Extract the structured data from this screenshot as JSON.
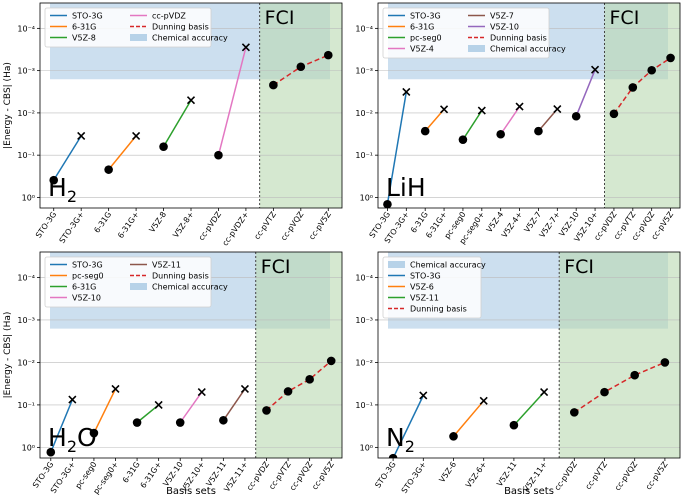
{
  "figure": {
    "ylabel": "|Energy - CBS| (Ha)",
    "xlabel": "Basis sets",
    "fci_label": "FCI",
    "colors": {
      "chemical_accuracy": "#b7d2e8",
      "fci_region": "#b9d9b0",
      "fci_text": "#2ca02c",
      "dunning": "#d62728"
    }
  },
  "chart_data": [
    {
      "type": "line",
      "molecule": "H2",
      "molecule_label": [
        "H",
        "2",
        ""
      ],
      "y_scale": "log_inverted",
      "y_ticks": [
        "10⁻⁴",
        "10⁻³",
        "10⁻²",
        "10⁻¹",
        "10⁰"
      ],
      "categories": [
        "STO-3G",
        "STO-3G+",
        "6-31G",
        "6-31G+",
        "V5Z-8",
        "V5Z-8+",
        "cc-pVDZ",
        "cc-pVDZ+",
        "cc-pVTZ",
        "cc-pVQZ",
        "cc-pV5Z"
      ],
      "fci_start_category": "cc-pVTZ",
      "chemical_accuracy": [
        2.52e-05,
        0.0016
      ],
      "series": [
        {
          "name": "STO-3G",
          "color": "#1f77b4",
          "style": "solid",
          "x": [
            "STO-3G",
            "STO-3G+"
          ],
          "y": [
            0.39,
            0.035
          ]
        },
        {
          "name": "6-31G",
          "color": "#ff7f0e",
          "style": "solid",
          "x": [
            "6-31G",
            "6-31G+"
          ],
          "y": [
            0.22,
            0.035
          ]
        },
        {
          "name": "V5Z-8",
          "color": "#2ca02c",
          "style": "solid",
          "x": [
            "V5Z-8",
            "V5Z-8+"
          ],
          "y": [
            0.063,
            0.005
          ]
        },
        {
          "name": "cc-pVDZ",
          "color": "#e377c2",
          "style": "solid",
          "x": [
            "cc-pVDZ",
            "cc-pVDZ+"
          ],
          "y": [
            0.1,
            0.00028
          ]
        },
        {
          "name": "Dunning basis",
          "color": "#d62728",
          "style": "dashed",
          "x": [
            "cc-pVTZ",
            "cc-pVQZ",
            "cc-pV5Z"
          ],
          "y": [
            0.0022,
            0.00081,
            0.00043
          ]
        }
      ],
      "legend_rows": [
        [
          {
            "label": "STO-3G",
            "color": "#1f77b4",
            "kind": "line"
          },
          {
            "label": "cc-pVDZ",
            "color": "#e377c2",
            "kind": "line"
          }
        ],
        [
          {
            "label": "6-31G",
            "color": "#ff7f0e",
            "kind": "line"
          },
          {
            "label": "Dunning basis",
            "color": "#d62728",
            "kind": "dash"
          }
        ],
        [
          {
            "label": "V5Z-8",
            "color": "#2ca02c",
            "kind": "line"
          },
          {
            "label": "Chemical accuracy",
            "color": "#b7d2e8",
            "kind": "patch"
          }
        ]
      ],
      "show_ylabel": true,
      "show_xlabel": false
    },
    {
      "type": "line",
      "molecule": "LiH",
      "molecule_label": [
        "LiH",
        "",
        ""
      ],
      "y_scale": "log_inverted",
      "y_ticks": [
        "10⁻⁴",
        "10⁻³",
        "10⁻²",
        "10⁻¹",
        "10⁰"
      ],
      "categories": [
        "STO-3G",
        "STO-3G+",
        "6-31G",
        "6-31G+",
        "pc-seg0",
        "pc-seg0+",
        "V5Z-4",
        "V5Z-4+",
        "V5Z-7",
        "V5Z-7+",
        "V5Z-10",
        "V5Z-10+",
        "cc-pVDZ",
        "cc-pVTZ",
        "cc-pVQZ",
        "cc-pV5Z"
      ],
      "fci_start_category": "cc-pVDZ",
      "chemical_accuracy": [
        2.52e-05,
        0.0016
      ],
      "series": [
        {
          "name": "STO-3G",
          "color": "#1f77b4",
          "style": "solid",
          "x": [
            "STO-3G",
            "STO-3G+"
          ],
          "y": [
            1.45,
            0.0032
          ]
        },
        {
          "name": "6-31G",
          "color": "#ff7f0e",
          "style": "solid",
          "x": [
            "6-31G",
            "6-31G+"
          ],
          "y": [
            0.027,
            0.0082
          ]
        },
        {
          "name": "pc-seg0",
          "color": "#2ca02c",
          "style": "solid",
          "x": [
            "pc-seg0",
            "pc-seg0+"
          ],
          "y": [
            0.043,
            0.0088
          ]
        },
        {
          "name": "V5Z-4",
          "color": "#e377c2",
          "style": "solid",
          "x": [
            "V5Z-4",
            "V5Z-4+"
          ],
          "y": [
            0.032,
            0.0071
          ]
        },
        {
          "name": "V5Z-7",
          "color": "#8c564b",
          "style": "solid",
          "x": [
            "V5Z-7",
            "V5Z-7+"
          ],
          "y": [
            0.027,
            0.0081
          ]
        },
        {
          "name": "V5Z-10",
          "color": "#9467bd",
          "style": "solid",
          "x": [
            "V5Z-10",
            "V5Z-10+"
          ],
          "y": [
            0.012,
            0.00095
          ]
        },
        {
          "name": "Dunning basis",
          "color": "#d62728",
          "style": "dashed",
          "x": [
            "cc-pVDZ",
            "cc-pVTZ",
            "cc-pVQZ",
            "cc-pV5Z"
          ],
          "y": [
            0.0105,
            0.0025,
            0.00098,
            0.0005
          ]
        }
      ],
      "legend_rows": [
        [
          {
            "label": "STO-3G",
            "color": "#1f77b4",
            "kind": "line"
          },
          {
            "label": "V5Z-7",
            "color": "#8c564b",
            "kind": "line"
          }
        ],
        [
          {
            "label": "6-31G",
            "color": "#ff7f0e",
            "kind": "line"
          },
          {
            "label": "V5Z-10",
            "color": "#9467bd",
            "kind": "line"
          }
        ],
        [
          {
            "label": "pc-seg0",
            "color": "#2ca02c",
            "kind": "line"
          },
          {
            "label": "Dunning basis",
            "color": "#d62728",
            "kind": "dash"
          }
        ],
        [
          {
            "label": "V5Z-4",
            "color": "#e377c2",
            "kind": "line"
          },
          {
            "label": "Chemical accuracy",
            "color": "#b7d2e8",
            "kind": "patch"
          }
        ]
      ],
      "show_ylabel": false,
      "show_xlabel": false
    },
    {
      "type": "line",
      "molecule": "H2O",
      "molecule_label": [
        "H",
        "2",
        "O"
      ],
      "y_scale": "log_inverted",
      "y_ticks": [
        "10⁻⁴",
        "10⁻³",
        "10⁻²",
        "10⁻¹",
        "10⁰"
      ],
      "categories": [
        "STO-3G",
        "STO-3G+",
        "pc-seg0",
        "pc-seg0+",
        "6-31G",
        "6-31G+",
        "V5Z-10",
        "V5Z-10+",
        "V5Z-11",
        "V5Z-11+",
        "cc-pVDZ",
        "cc-pVTZ",
        "cc-pVQZ",
        "cc-pV5Z"
      ],
      "fci_start_category": "cc-pVDZ",
      "chemical_accuracy": [
        2.52e-05,
        0.0016
      ],
      "series": [
        {
          "name": "STO-3G",
          "color": "#1f77b4",
          "style": "solid",
          "x": [
            "STO-3G",
            "STO-3G+"
          ],
          "y": [
            1.3,
            0.075
          ]
        },
        {
          "name": "pc-seg0",
          "color": "#ff7f0e",
          "style": "solid",
          "x": [
            "pc-seg0",
            "pc-seg0+"
          ],
          "y": [
            0.46,
            0.042
          ]
        },
        {
          "name": "6-31G",
          "color": "#2ca02c",
          "style": "solid",
          "x": [
            "6-31G",
            "6-31G+"
          ],
          "y": [
            0.26,
            0.1
          ]
        },
        {
          "name": "V5Z-10",
          "color": "#e377c2",
          "style": "solid",
          "x": [
            "V5Z-10",
            "V5Z-10+"
          ],
          "y": [
            0.26,
            0.05
          ]
        },
        {
          "name": "V5Z-11",
          "color": "#8c564b",
          "style": "solid",
          "x": [
            "V5Z-11",
            "V5Z-11+"
          ],
          "y": [
            0.23,
            0.042
          ]
        },
        {
          "name": "Dunning basis",
          "color": "#d62728",
          "style": "dashed",
          "x": [
            "cc-pVDZ",
            "cc-pVTZ",
            "cc-pVQZ",
            "cc-pV5Z"
          ],
          "y": [
            0.135,
            0.048,
            0.025,
            0.0092
          ]
        }
      ],
      "legend_rows": [
        [
          {
            "label": "STO-3G",
            "color": "#1f77b4",
            "kind": "line"
          },
          {
            "label": "V5Z-11",
            "color": "#8c564b",
            "kind": "line"
          }
        ],
        [
          {
            "label": "pc-seg0",
            "color": "#ff7f0e",
            "kind": "line"
          },
          {
            "label": "Dunning basis",
            "color": "#d62728",
            "kind": "dash"
          }
        ],
        [
          {
            "label": "6-31G",
            "color": "#2ca02c",
            "kind": "line"
          },
          {
            "label": "Chemical accuracy",
            "color": "#b7d2e8",
            "kind": "patch"
          }
        ],
        [
          {
            "label": "V5Z-10",
            "color": "#e377c2",
            "kind": "line"
          }
        ]
      ],
      "show_ylabel": true,
      "show_xlabel": true
    },
    {
      "type": "line",
      "molecule": "N2",
      "molecule_label": [
        "N",
        "2",
        ""
      ],
      "y_scale": "log_inverted",
      "y_ticks": [
        "10⁻⁴",
        "10⁻³",
        "10⁻²",
        "10⁻¹",
        "10⁰"
      ],
      "categories": [
        "STO-3G",
        "STO-3G+",
        "V5Z-6",
        "V5Z-6+",
        "V5Z-11",
        "V5Z-11+",
        "cc-pVDZ",
        "cc-pVTZ",
        "cc-pVQZ",
        "cc-pV5Z"
      ],
      "fci_start_category": "cc-pVDZ",
      "chemical_accuracy": [
        2.52e-05,
        0.0016
      ],
      "series": [
        {
          "name": "STO-3G",
          "color": "#1f77b4",
          "style": "solid",
          "x": [
            "STO-3G",
            "STO-3G+"
          ],
          "y": [
            1.8,
            0.06
          ]
        },
        {
          "name": "V5Z-6",
          "color": "#ff7f0e",
          "style": "solid",
          "x": [
            "V5Z-6",
            "V5Z-6+"
          ],
          "y": [
            0.55,
            0.08
          ]
        },
        {
          "name": "V5Z-11",
          "color": "#2ca02c",
          "style": "solid",
          "x": [
            "V5Z-11",
            "V5Z-11+"
          ],
          "y": [
            0.3,
            0.05
          ]
        },
        {
          "name": "Dunning basis",
          "color": "#d62728",
          "style": "dashed",
          "x": [
            "cc-pVDZ",
            "cc-pVTZ",
            "cc-pVQZ",
            "cc-pV5Z"
          ],
          "y": [
            0.15,
            0.05,
            0.02,
            0.01
          ]
        }
      ],
      "legend_rows": [
        [
          {
            "label": "Chemical accuracy",
            "color": "#b7d2e8",
            "kind": "patch"
          }
        ],
        [
          {
            "label": "STO-3G",
            "color": "#1f77b4",
            "kind": "line"
          }
        ],
        [
          {
            "label": "V5Z-6",
            "color": "#ff7f0e",
            "kind": "line"
          }
        ],
        [
          {
            "label": "V5Z-11",
            "color": "#2ca02c",
            "kind": "line"
          }
        ],
        [
          {
            "label": "Dunning basis",
            "color": "#d62728",
            "kind": "dash"
          }
        ]
      ],
      "show_ylabel": false,
      "show_xlabel": true
    }
  ]
}
